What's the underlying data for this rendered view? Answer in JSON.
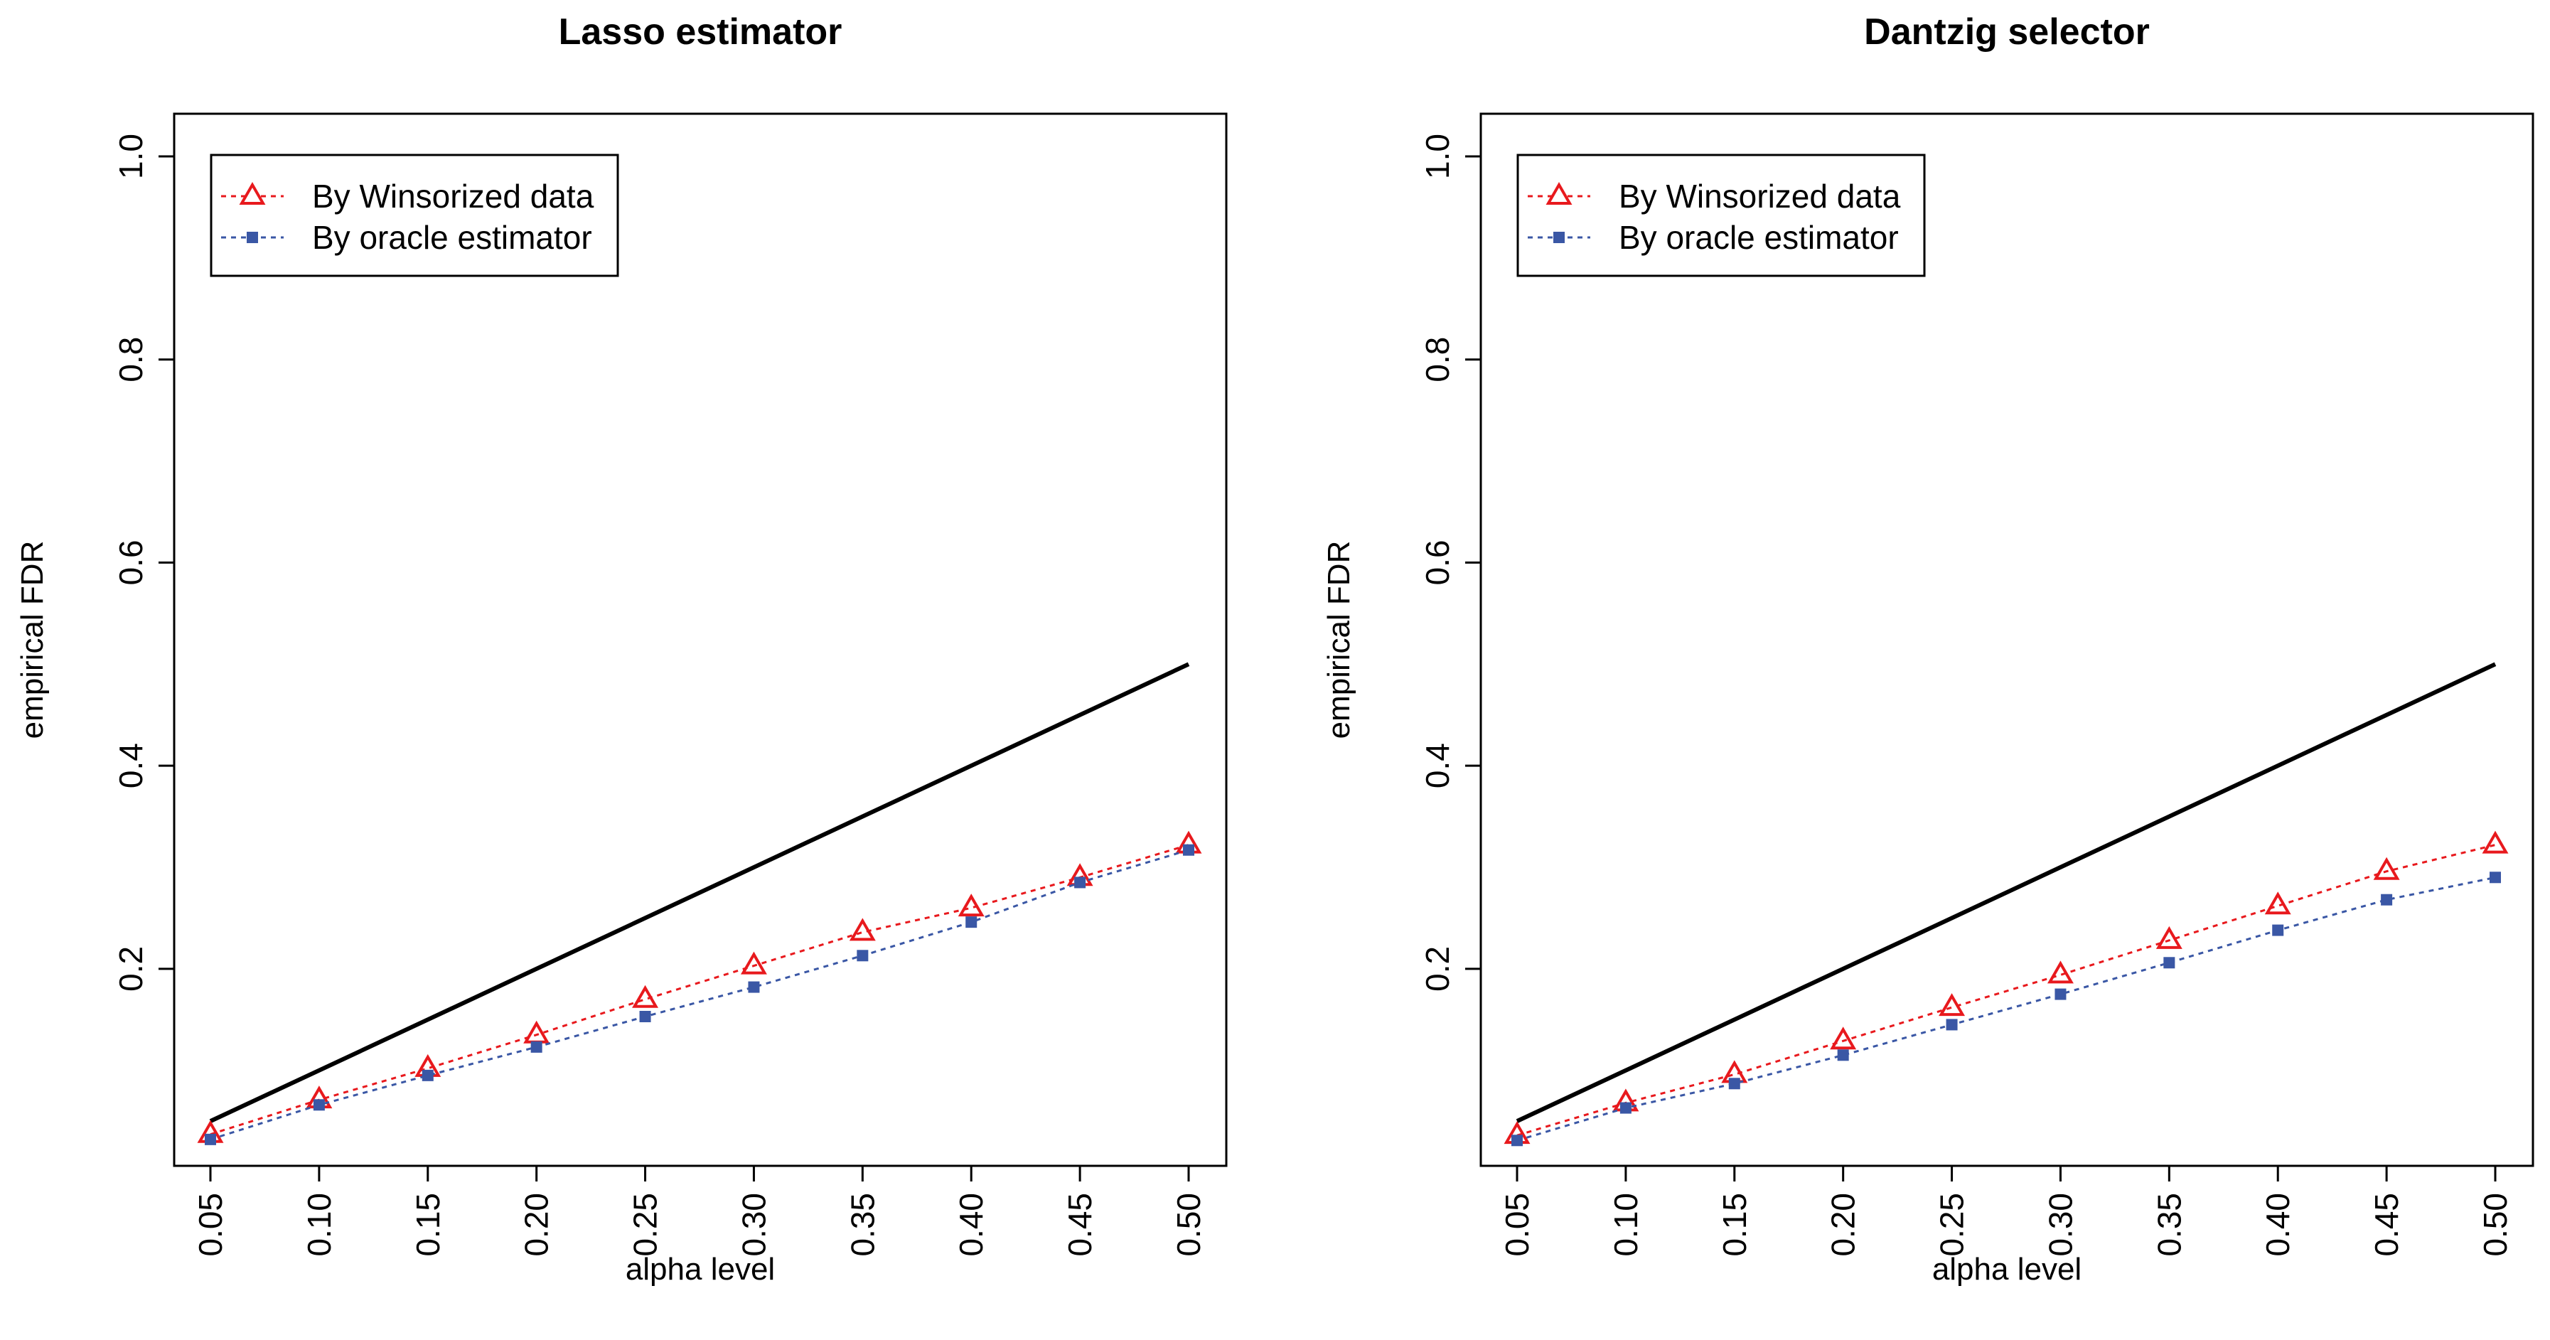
{
  "chart_data": [
    {
      "type": "line",
      "title": "Lasso estimator",
      "xlabel": "alpha level",
      "ylabel": "empirical FDR",
      "categories": [
        "0.05",
        "0.10",
        "0.15",
        "0.20",
        "0.25",
        "0.30",
        "0.35",
        "0.40",
        "0.45",
        "0.50"
      ],
      "x": [
        0.05,
        0.1,
        0.15,
        0.2,
        0.25,
        0.3,
        0.35,
        0.4,
        0.45,
        0.5
      ],
      "ylim": [
        0.02,
        1.0
      ],
      "yticks": [
        "0.2",
        "0.4",
        "0.6",
        "0.8",
        "1.0"
      ],
      "yticks_values": [
        0.2,
        0.4,
        0.6,
        0.8,
        1.0
      ],
      "reference_line": {
        "name": "y = alpha",
        "color": "#000000",
        "x": [
          0.05,
          0.5
        ],
        "y": [
          0.05,
          0.5
        ]
      },
      "series": [
        {
          "name": "By Winsorized data",
          "color": "#e8191d",
          "marker": "open-triangle",
          "values": [
            0.037,
            0.071,
            0.102,
            0.135,
            0.17,
            0.203,
            0.236,
            0.26,
            0.29,
            0.322
          ]
        },
        {
          "name": "By oracle estimator",
          "color": "#3a57a5",
          "marker": "filled-square",
          "values": [
            0.032,
            0.066,
            0.095,
            0.123,
            0.153,
            0.182,
            0.213,
            0.246,
            0.285,
            0.317
          ]
        }
      ],
      "legend": {
        "position": "top-left"
      }
    },
    {
      "type": "line",
      "title": "Dantzig selector",
      "xlabel": "alpha level",
      "ylabel": "empirical FDR",
      "categories": [
        "0.05",
        "0.10",
        "0.15",
        "0.20",
        "0.25",
        "0.30",
        "0.35",
        "0.40",
        "0.45",
        "0.50"
      ],
      "x": [
        0.05,
        0.1,
        0.15,
        0.2,
        0.25,
        0.3,
        0.35,
        0.4,
        0.45,
        0.5
      ],
      "ylim": [
        0.02,
        1.0
      ],
      "yticks": [
        "0.2",
        "0.4",
        "0.6",
        "0.8",
        "1.0"
      ],
      "yticks_values": [
        0.2,
        0.4,
        0.6,
        0.8,
        1.0
      ],
      "reference_line": {
        "name": "y = alpha",
        "color": "#000000",
        "x": [
          0.05,
          0.5
        ],
        "y": [
          0.05,
          0.5
        ]
      },
      "series": [
        {
          "name": "By Winsorized data",
          "color": "#e8191d",
          "marker": "open-triangle",
          "values": [
            0.036,
            0.068,
            0.096,
            0.129,
            0.162,
            0.194,
            0.228,
            0.262,
            0.296,
            0.322
          ]
        },
        {
          "name": "By oracle estimator",
          "color": "#3a57a5",
          "marker": "filled-square",
          "values": [
            0.031,
            0.063,
            0.087,
            0.115,
            0.145,
            0.175,
            0.206,
            0.238,
            0.268,
            0.29
          ]
        }
      ],
      "legend": {
        "position": "top-left"
      }
    }
  ]
}
